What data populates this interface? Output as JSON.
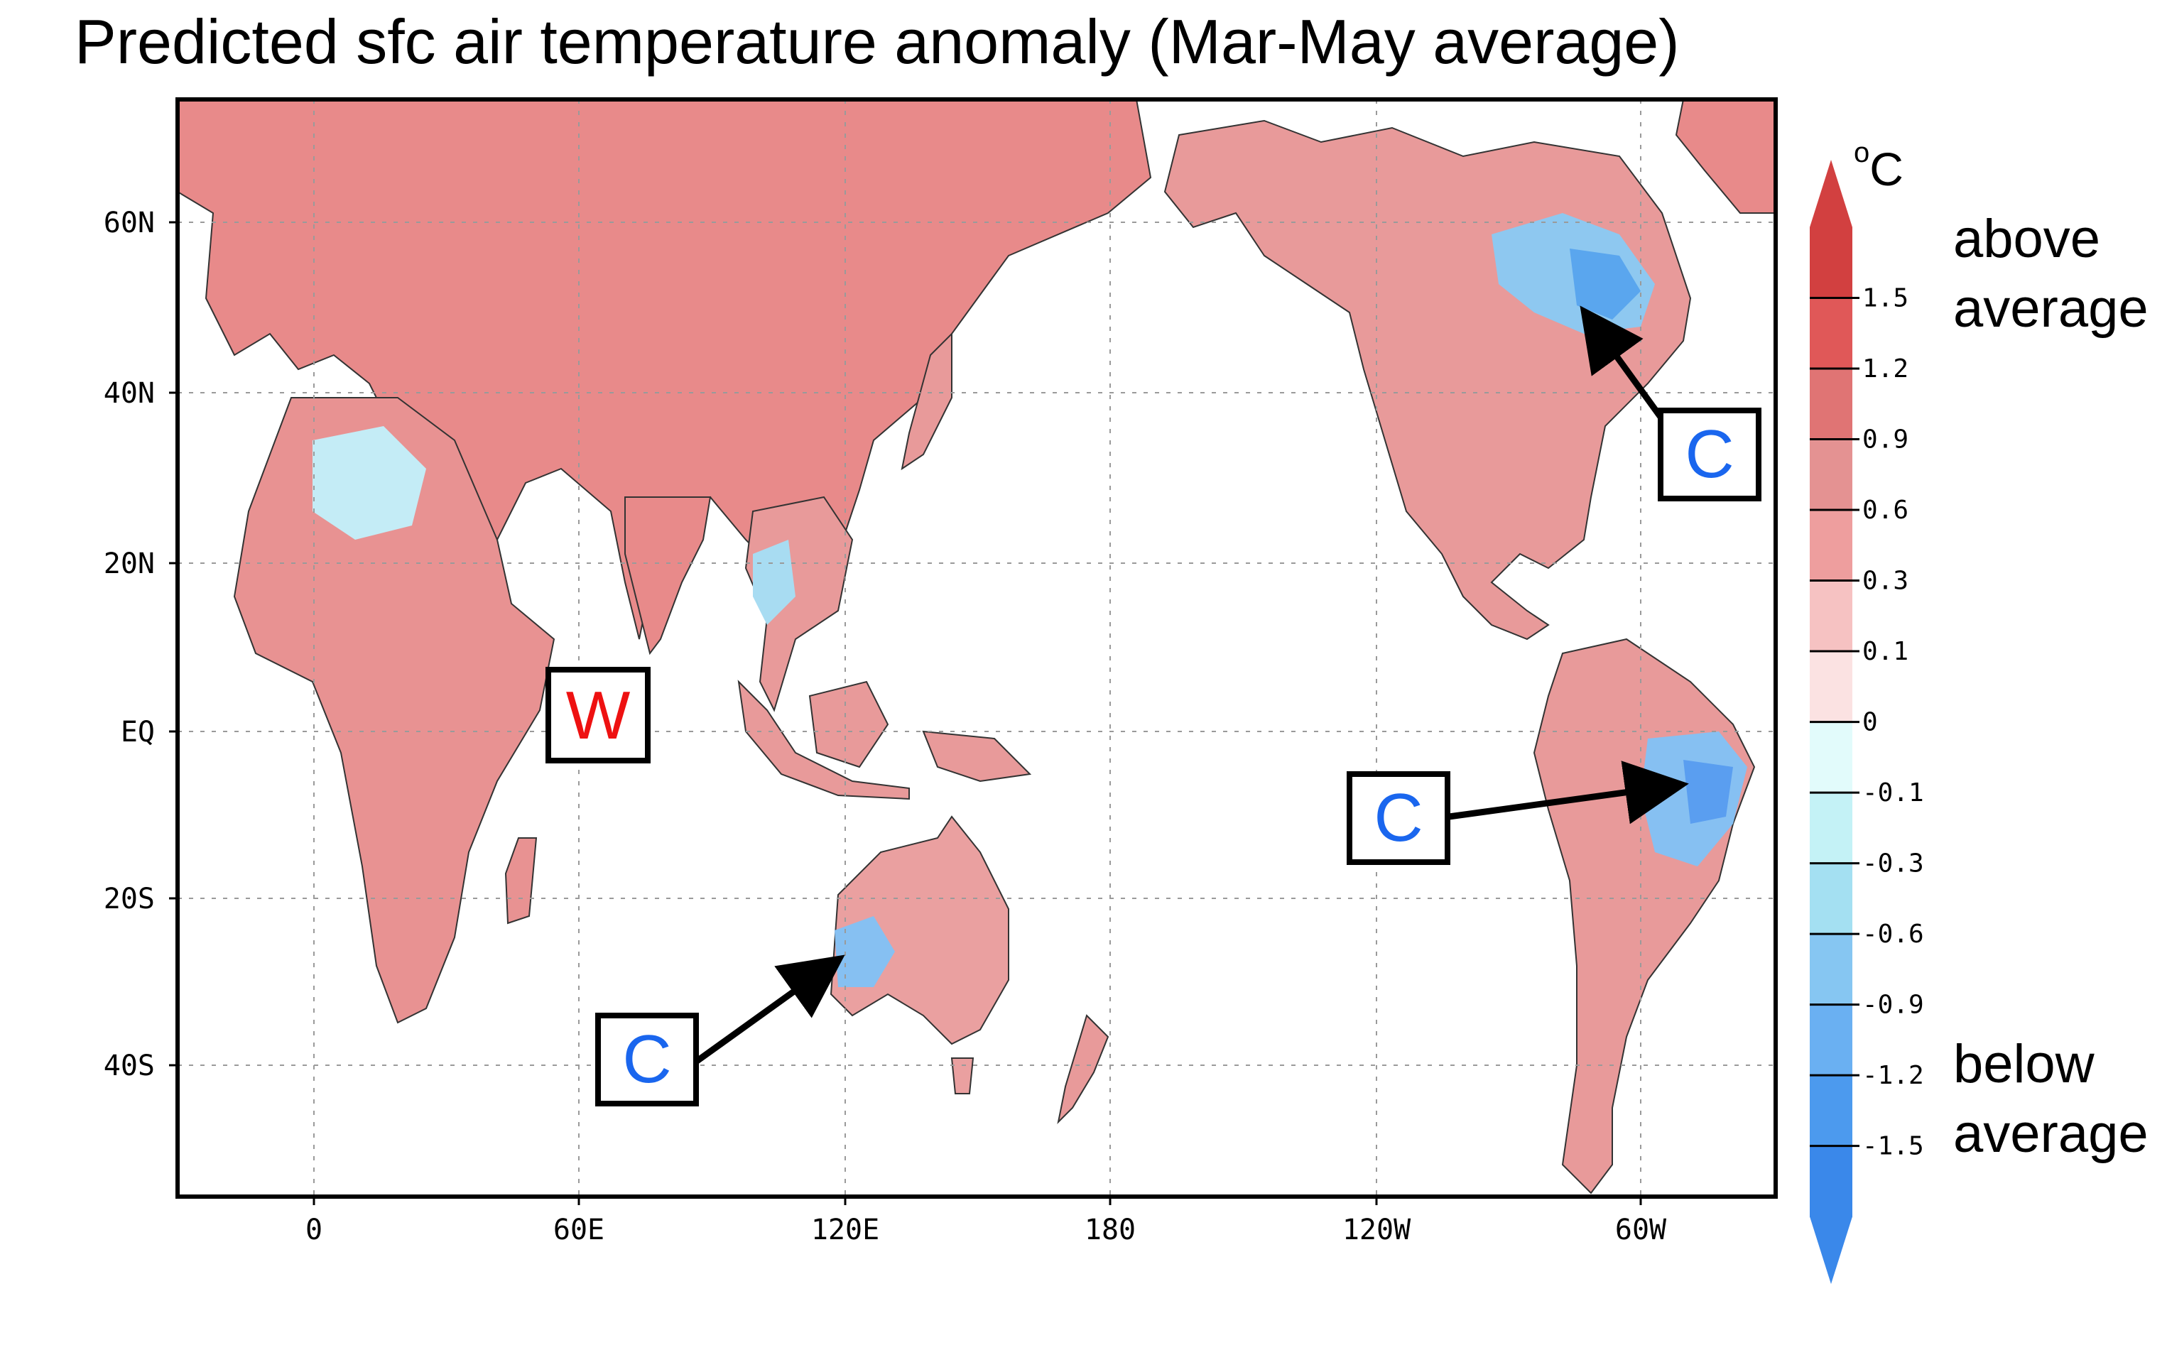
{
  "title": "Predicted sfc air temperature anomaly (Mar-May average)",
  "map": {
    "lat_ticks": [
      "60N",
      "40N",
      "20N",
      "EQ",
      "20S",
      "40S"
    ],
    "lon_ticks": [
      "0",
      "60E",
      "120E",
      "180",
      "120W",
      "60W"
    ],
    "annotations": [
      {
        "label": "W",
        "meaning": "warm",
        "color": "#ee1111"
      },
      {
        "label": "C",
        "meaning": "cold",
        "color": "#1a66ee",
        "region": "eastern Canada"
      },
      {
        "label": "C",
        "meaning": "cold",
        "color": "#1a66ee",
        "region": "eastern Brazil"
      },
      {
        "label": "C",
        "meaning": "cold",
        "color": "#1a66ee",
        "region": "western Australia"
      }
    ]
  },
  "colorbar": {
    "unit": "C",
    "tick_labels": [
      "1.5",
      "1.2",
      "0.9",
      "0.6",
      "0.3",
      "0.1",
      "0",
      "-0.1",
      "-0.3",
      "-0.6",
      "-0.9",
      "-1.2",
      "-1.5"
    ],
    "colors": [
      "#d24040",
      "#e05858",
      "#e07474",
      "#e49292",
      "#ee9e9e",
      "#f6c2c2",
      "#fbe2e2",
      "#e2fbfb",
      "#c4f2f6",
      "#a4e0f2",
      "#86c6f2",
      "#6ab0f2",
      "#4c9aee",
      "#3a88ea"
    ],
    "above_label_1": "above",
    "above_label_2": "average",
    "below_label_1": "below",
    "below_label_2": "average"
  }
}
